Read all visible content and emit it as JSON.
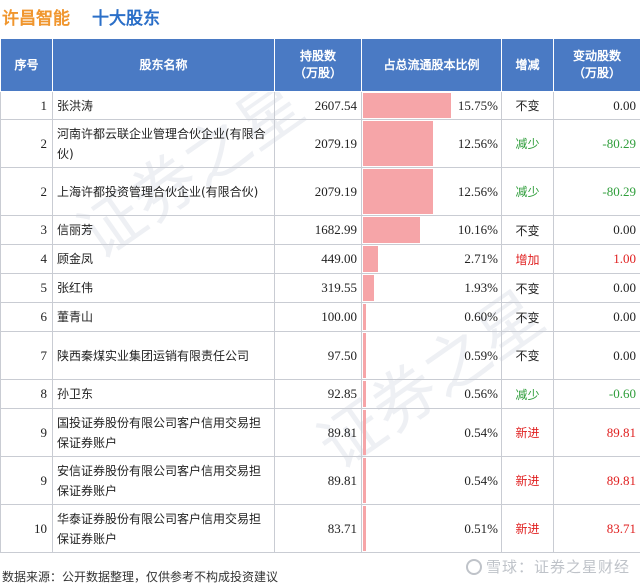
{
  "header": {
    "company": "许昌智能",
    "subtitle": "十大股东"
  },
  "footer": {
    "source": "数据来源：公开数据整理，仅供参考不构成投资建议",
    "watermark": "雪球：证券之星财经"
  },
  "colors": {
    "header_bg": "#4a7ac4",
    "bar": "#f6a5a8",
    "decrease": "#2f9e3b",
    "increase": "#e02020"
  },
  "chart_data": {
    "type": "table",
    "columns": [
      "序号",
      "股东名称",
      "持股数（万股）",
      "占总流通股本比例",
      "增减",
      "变动股数（万股）"
    ],
    "rows": [
      {
        "rank": "1",
        "name": "张洪涛",
        "holding": "2607.54",
        "ratio": 15.75,
        "ratio_text": "15.75%",
        "change": "不变",
        "delta": "0.00"
      },
      {
        "rank": "2",
        "name": "河南许都云联企业管理合伙企业(有限合伙)",
        "holding": "2079.19",
        "ratio": 12.56,
        "ratio_text": "12.56%",
        "change": "减少",
        "delta": "-80.29"
      },
      {
        "rank": "2",
        "name": "上海许都投资管理合伙企业(有限合伙)",
        "holding": "2079.19",
        "ratio": 12.56,
        "ratio_text": "12.56%",
        "change": "减少",
        "delta": "-80.29"
      },
      {
        "rank": "3",
        "name": "信丽芳",
        "holding": "1682.99",
        "ratio": 10.16,
        "ratio_text": "10.16%",
        "change": "不变",
        "delta": "0.00"
      },
      {
        "rank": "4",
        "name": "顾金凤",
        "holding": "449.00",
        "ratio": 2.71,
        "ratio_text": "2.71%",
        "change": "增加",
        "delta": "1.00"
      },
      {
        "rank": "5",
        "name": "张红伟",
        "holding": "319.55",
        "ratio": 1.93,
        "ratio_text": "1.93%",
        "change": "不变",
        "delta": "0.00"
      },
      {
        "rank": "6",
        "name": "董青山",
        "holding": "100.00",
        "ratio": 0.6,
        "ratio_text": "0.60%",
        "change": "不变",
        "delta": "0.00"
      },
      {
        "rank": "7",
        "name": "陕西秦煤实业集团运销有限责任公司",
        "holding": "97.50",
        "ratio": 0.59,
        "ratio_text": "0.59%",
        "change": "不变",
        "delta": "0.00"
      },
      {
        "rank": "8",
        "name": "孙卫东",
        "holding": "92.85",
        "ratio": 0.56,
        "ratio_text": "0.56%",
        "change": "减少",
        "delta": "-0.60"
      },
      {
        "rank": "9",
        "name": "国投证券股份有限公司客户信用交易担保证券账户",
        "holding": "89.81",
        "ratio": 0.54,
        "ratio_text": "0.54%",
        "change": "新进",
        "delta": "89.81"
      },
      {
        "rank": "9",
        "name": "安信证券股份有限公司客户信用交易担保证券账户",
        "holding": "89.81",
        "ratio": 0.54,
        "ratio_text": "0.54%",
        "change": "新进",
        "delta": "89.81"
      },
      {
        "rank": "10",
        "name": "华泰证券股份有限公司客户信用交易担保证券账户",
        "holding": "83.71",
        "ratio": 0.51,
        "ratio_text": "0.51%",
        "change": "新进",
        "delta": "83.71"
      }
    ]
  }
}
